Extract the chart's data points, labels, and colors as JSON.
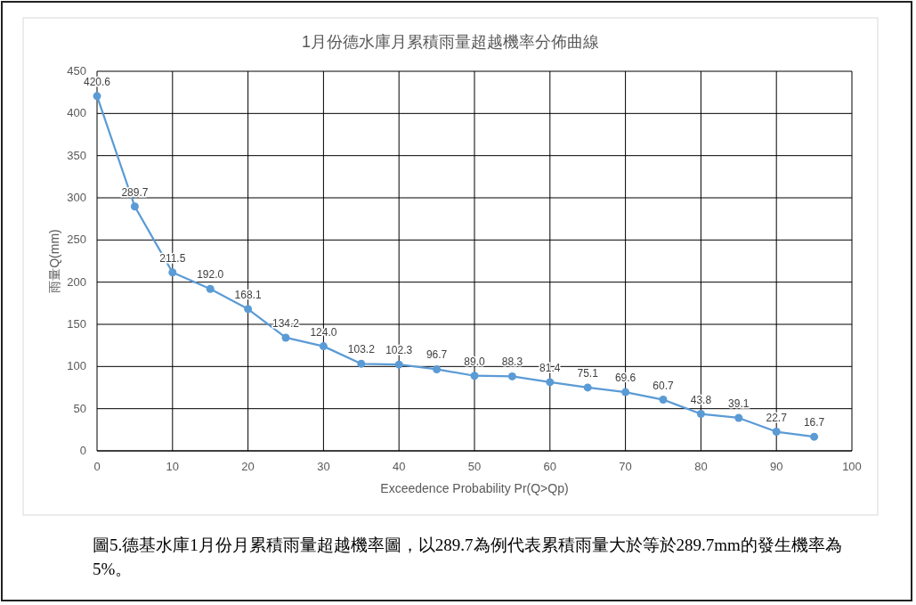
{
  "chart_data": {
    "type": "line",
    "title": "1月份德水庫月累積雨量超越機率分佈曲線",
    "xlabel": "Exceedence Probability Pr(Q>Qp)",
    "ylabel": "雨量Q(mm)",
    "x": [
      0,
      5,
      10,
      15,
      20,
      25,
      30,
      35,
      40,
      45,
      50,
      55,
      60,
      65,
      70,
      75,
      80,
      85,
      90,
      95
    ],
    "series": [
      {
        "color": "#5b9bd5",
        "values": [
          420.6,
          289.7,
          211.5,
          192.0,
          168.1,
          134.2,
          124.0,
          103.2,
          102.3,
          96.7,
          89.0,
          88.3,
          81.4,
          75.1,
          69.6,
          60.7,
          43.8,
          39.1,
          22.7,
          16.7
        ],
        "value_labels": [
          "420.6",
          "289.7",
          "211.5",
          "192.0",
          "168.1",
          "134.2",
          "124.0",
          "103.2",
          "102.3",
          "96.7",
          "89.0",
          "88.3",
          "81.4",
          "75.1",
          "69.6",
          "60.7",
          "43.8",
          "39.1",
          "22.7",
          "16.7"
        ]
      }
    ],
    "xlim": [
      0,
      100
    ],
    "ylim": [
      0,
      450
    ],
    "xticks": [
      0,
      10,
      20,
      30,
      40,
      50,
      60,
      70,
      80,
      90,
      100
    ],
    "yticks": [
      0,
      50,
      100,
      150,
      200,
      250,
      300,
      350,
      400,
      450
    ],
    "grid": true,
    "marker": "circle",
    "line_style": "solid",
    "annotations": [
      "圖5.德基水庫1月份月累積雨量超越機率圖，以289.7為例代表累積雨量大於等於289.7mm的發生機率為5%。"
    ]
  }
}
